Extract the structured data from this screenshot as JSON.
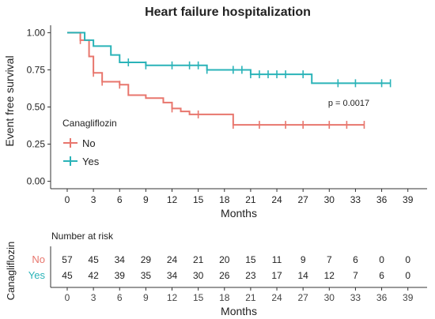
{
  "chart_data": [
    {
      "type": "line",
      "subtype": "kaplan-meier",
      "title": "Heart failure hospitalization",
      "xlabel": "Months",
      "ylabel": "Event free survival",
      "xlim": [
        -1.9,
        41.2
      ],
      "ylim": [
        -0.05,
        1.05
      ],
      "x_ticks": [
        0,
        3,
        6,
        9,
        12,
        15,
        18,
        21,
        24,
        27,
        30,
        33,
        36,
        39
      ],
      "y_ticks": [
        0.0,
        0.25,
        0.5,
        0.75,
        1.0
      ],
      "y_tick_labels": [
        "0.00",
        "0.25",
        "0.50",
        "0.75",
        "1.00"
      ],
      "grid": false,
      "annotation": "p = 0.0017",
      "legend": {
        "title": "Canagliflozin",
        "placement": "left-center",
        "entries": [
          "No",
          "Yes"
        ]
      },
      "series": [
        {
          "name": "No",
          "color": "#E8766D",
          "steps": [
            [
              0,
              1.0
            ],
            [
              1.5,
              0.95
            ],
            [
              2.5,
              0.84
            ],
            [
              3.0,
              0.73
            ],
            [
              4.0,
              0.67
            ],
            [
              6.0,
              0.65
            ],
            [
              7.0,
              0.58
            ],
            [
              9.0,
              0.56
            ],
            [
              11.0,
              0.53
            ],
            [
              12.0,
              0.49
            ],
            [
              13.0,
              0.47
            ],
            [
              14.0,
              0.45
            ],
            [
              19.0,
              0.38
            ],
            [
              34.0,
              0.38
            ]
          ],
          "censors": [
            [
              1.5,
              0.95
            ],
            [
              3.0,
              0.73
            ],
            [
              4.0,
              0.67
            ],
            [
              6.0,
              0.65
            ],
            [
              12.0,
              0.49
            ],
            [
              15.0,
              0.45
            ],
            [
              19.0,
              0.38
            ],
            [
              22.0,
              0.38
            ],
            [
              25.0,
              0.38
            ],
            [
              27.0,
              0.38
            ],
            [
              30.0,
              0.38
            ],
            [
              32.0,
              0.38
            ],
            [
              34.0,
              0.38
            ]
          ]
        },
        {
          "name": "Yes",
          "color": "#2AB3B8",
          "steps": [
            [
              0,
              1.0
            ],
            [
              2.0,
              0.95
            ],
            [
              3.0,
              0.91
            ],
            [
              5.0,
              0.85
            ],
            [
              6.0,
              0.8
            ],
            [
              9.0,
              0.78
            ],
            [
              13.0,
              0.78
            ],
            [
              16.0,
              0.75
            ],
            [
              20.0,
              0.75
            ],
            [
              21.0,
              0.72
            ],
            [
              27.0,
              0.72
            ],
            [
              28.0,
              0.66
            ],
            [
              37.0,
              0.66
            ]
          ],
          "censors": [
            [
              7.0,
              0.8
            ],
            [
              9.0,
              0.78
            ],
            [
              12.0,
              0.78
            ],
            [
              14.0,
              0.78
            ],
            [
              15.0,
              0.78
            ],
            [
              16.0,
              0.75
            ],
            [
              19.0,
              0.75
            ],
            [
              20.0,
              0.75
            ],
            [
              21.0,
              0.72
            ],
            [
              22.0,
              0.72
            ],
            [
              23.0,
              0.72
            ],
            [
              24.0,
              0.72
            ],
            [
              25.0,
              0.72
            ],
            [
              27.0,
              0.72
            ],
            [
              31.0,
              0.66
            ],
            [
              33.0,
              0.66
            ],
            [
              36.0,
              0.66
            ],
            [
              37.0,
              0.66
            ]
          ]
        }
      ]
    },
    {
      "type": "table",
      "title": "Number at risk",
      "xlabel": "Months",
      "ylabel": "Canagliflozin",
      "x_ticks": [
        0,
        3,
        6,
        9,
        12,
        15,
        18,
        21,
        24,
        27,
        30,
        33,
        36,
        39
      ],
      "rows": [
        {
          "name": "No",
          "color": "#E8766D",
          "values": [
            57,
            45,
            34,
            29,
            24,
            21,
            20,
            15,
            11,
            9,
            7,
            6,
            0,
            0
          ]
        },
        {
          "name": "Yes",
          "color": "#2AB3B8",
          "values": [
            45,
            42,
            39,
            35,
            34,
            30,
            26,
            23,
            17,
            14,
            12,
            7,
            6,
            0
          ]
        }
      ]
    }
  ]
}
